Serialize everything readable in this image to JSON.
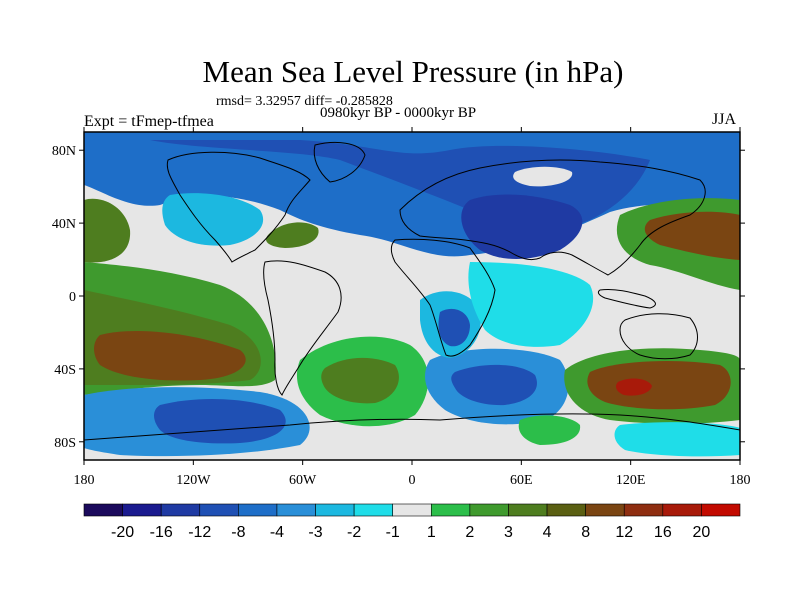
{
  "header": {
    "title": "Mean Sea Level Pressure (in hPa)",
    "stats": "rmsd= 3.32957 diff= -0.285828",
    "period": "0980kyr BP - 0000kyr BP",
    "experiment": "Expt = tFmep-tfmea",
    "season": "JJA"
  },
  "axes": {
    "lat_labels": [
      "80N",
      "40N",
      "0",
      "40S",
      "80S"
    ],
    "lat_values": [
      80,
      40,
      0,
      -40,
      -80
    ],
    "lon_labels": [
      "180",
      "120W",
      "60W",
      "0",
      "60E",
      "120E",
      "180"
    ],
    "lon_values": [
      -180,
      -120,
      -60,
      0,
      60,
      120,
      180
    ],
    "lat_range": [
      -90,
      90
    ],
    "lon_range": [
      -180,
      180
    ]
  },
  "colorbar": {
    "colors": [
      "#1b0a5c",
      "#1a1a8f",
      "#1f3aa3",
      "#1f50b4",
      "#1e6ec8",
      "#2a8fd8",
      "#1cb8e0",
      "#1fdde8",
      "#e6e6e6",
      "#2cbe4a",
      "#3f9a2e",
      "#4e7d1f",
      "#5a5f12",
      "#7a4512",
      "#8e2e10",
      "#a81a0a",
      "#c20a00"
    ],
    "labels": [
      "-20",
      "-16",
      "-12",
      "-8",
      "-4",
      "-3",
      "-2",
      "-1",
      "1",
      "2",
      "3",
      "4",
      "8",
      "12",
      "16",
      "20"
    ]
  },
  "field": {
    "background_color": "#e6e6e6",
    "regions": [
      {
        "name": "arctic-low",
        "color": "#1f50b4"
      },
      {
        "name": "asia-low",
        "color": "#1f3aa3"
      },
      {
        "name": "south-pacific-high",
        "color": "#5a5f12"
      },
      {
        "name": "australia-high",
        "color": "#5a5f12"
      },
      {
        "name": "south-atlantic-high",
        "color": "#4e7d1f"
      },
      {
        "name": "southern-indian-low",
        "color": "#1f50b4"
      },
      {
        "name": "south-america-low",
        "color": "#1f50b4"
      }
    ]
  }
}
